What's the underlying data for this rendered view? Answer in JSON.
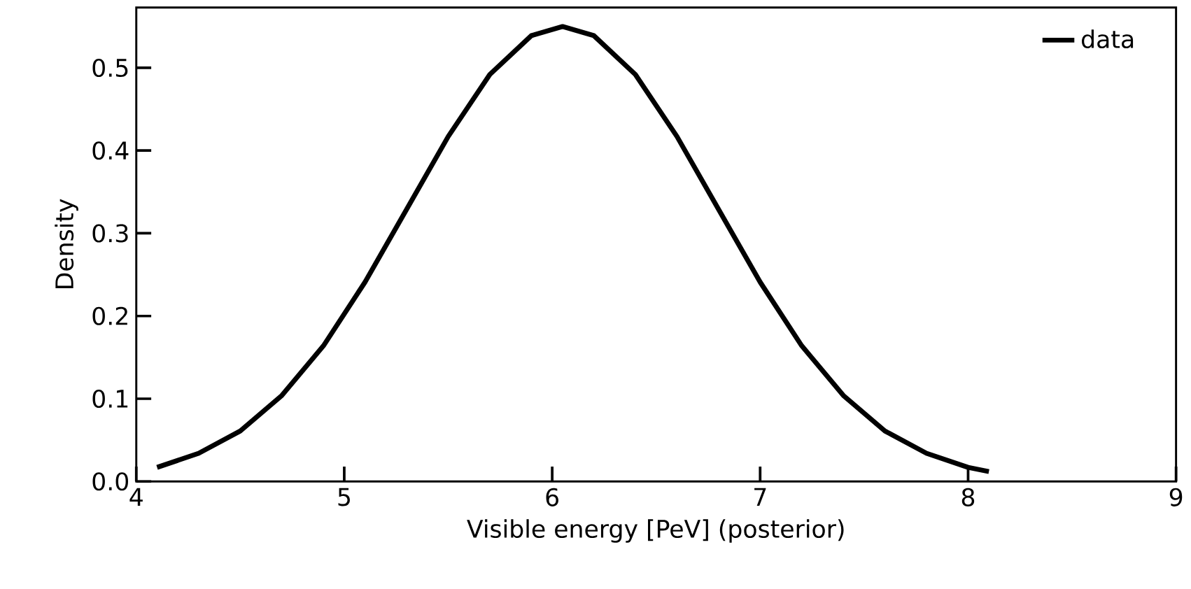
{
  "chart_data": {
    "type": "line",
    "xlabel": "Visible energy [PeV] (posterior)",
    "ylabel": "Density",
    "xlim": [
      4,
      9
    ],
    "ylim": [
      0,
      0.573
    ],
    "xticks": [
      4,
      5,
      6,
      7,
      8,
      9
    ],
    "yticks": [
      {
        "value": 0,
        "label": "0.0"
      },
      0.1,
      0.2,
      0.3,
      0.4,
      0.5
    ],
    "legend": "top right",
    "grid": false,
    "series": [
      {
        "name": "data",
        "color": "#000000",
        "x": [
          4.1,
          4.3,
          4.5,
          4.7,
          4.9,
          5.1,
          5.3,
          5.5,
          5.7,
          5.9,
          6.05,
          6.2,
          6.4,
          6.6,
          6.8,
          7.0,
          7.2,
          7.4,
          7.6,
          7.8,
          8.0,
          8.1
        ],
        "values": [
          0.017,
          0.034,
          0.061,
          0.104,
          0.164,
          0.241,
          0.329,
          0.417,
          0.492,
          0.539,
          0.55,
          0.539,
          0.492,
          0.417,
          0.329,
          0.241,
          0.164,
          0.104,
          0.061,
          0.034,
          0.017,
          0.012
        ]
      }
    ]
  }
}
